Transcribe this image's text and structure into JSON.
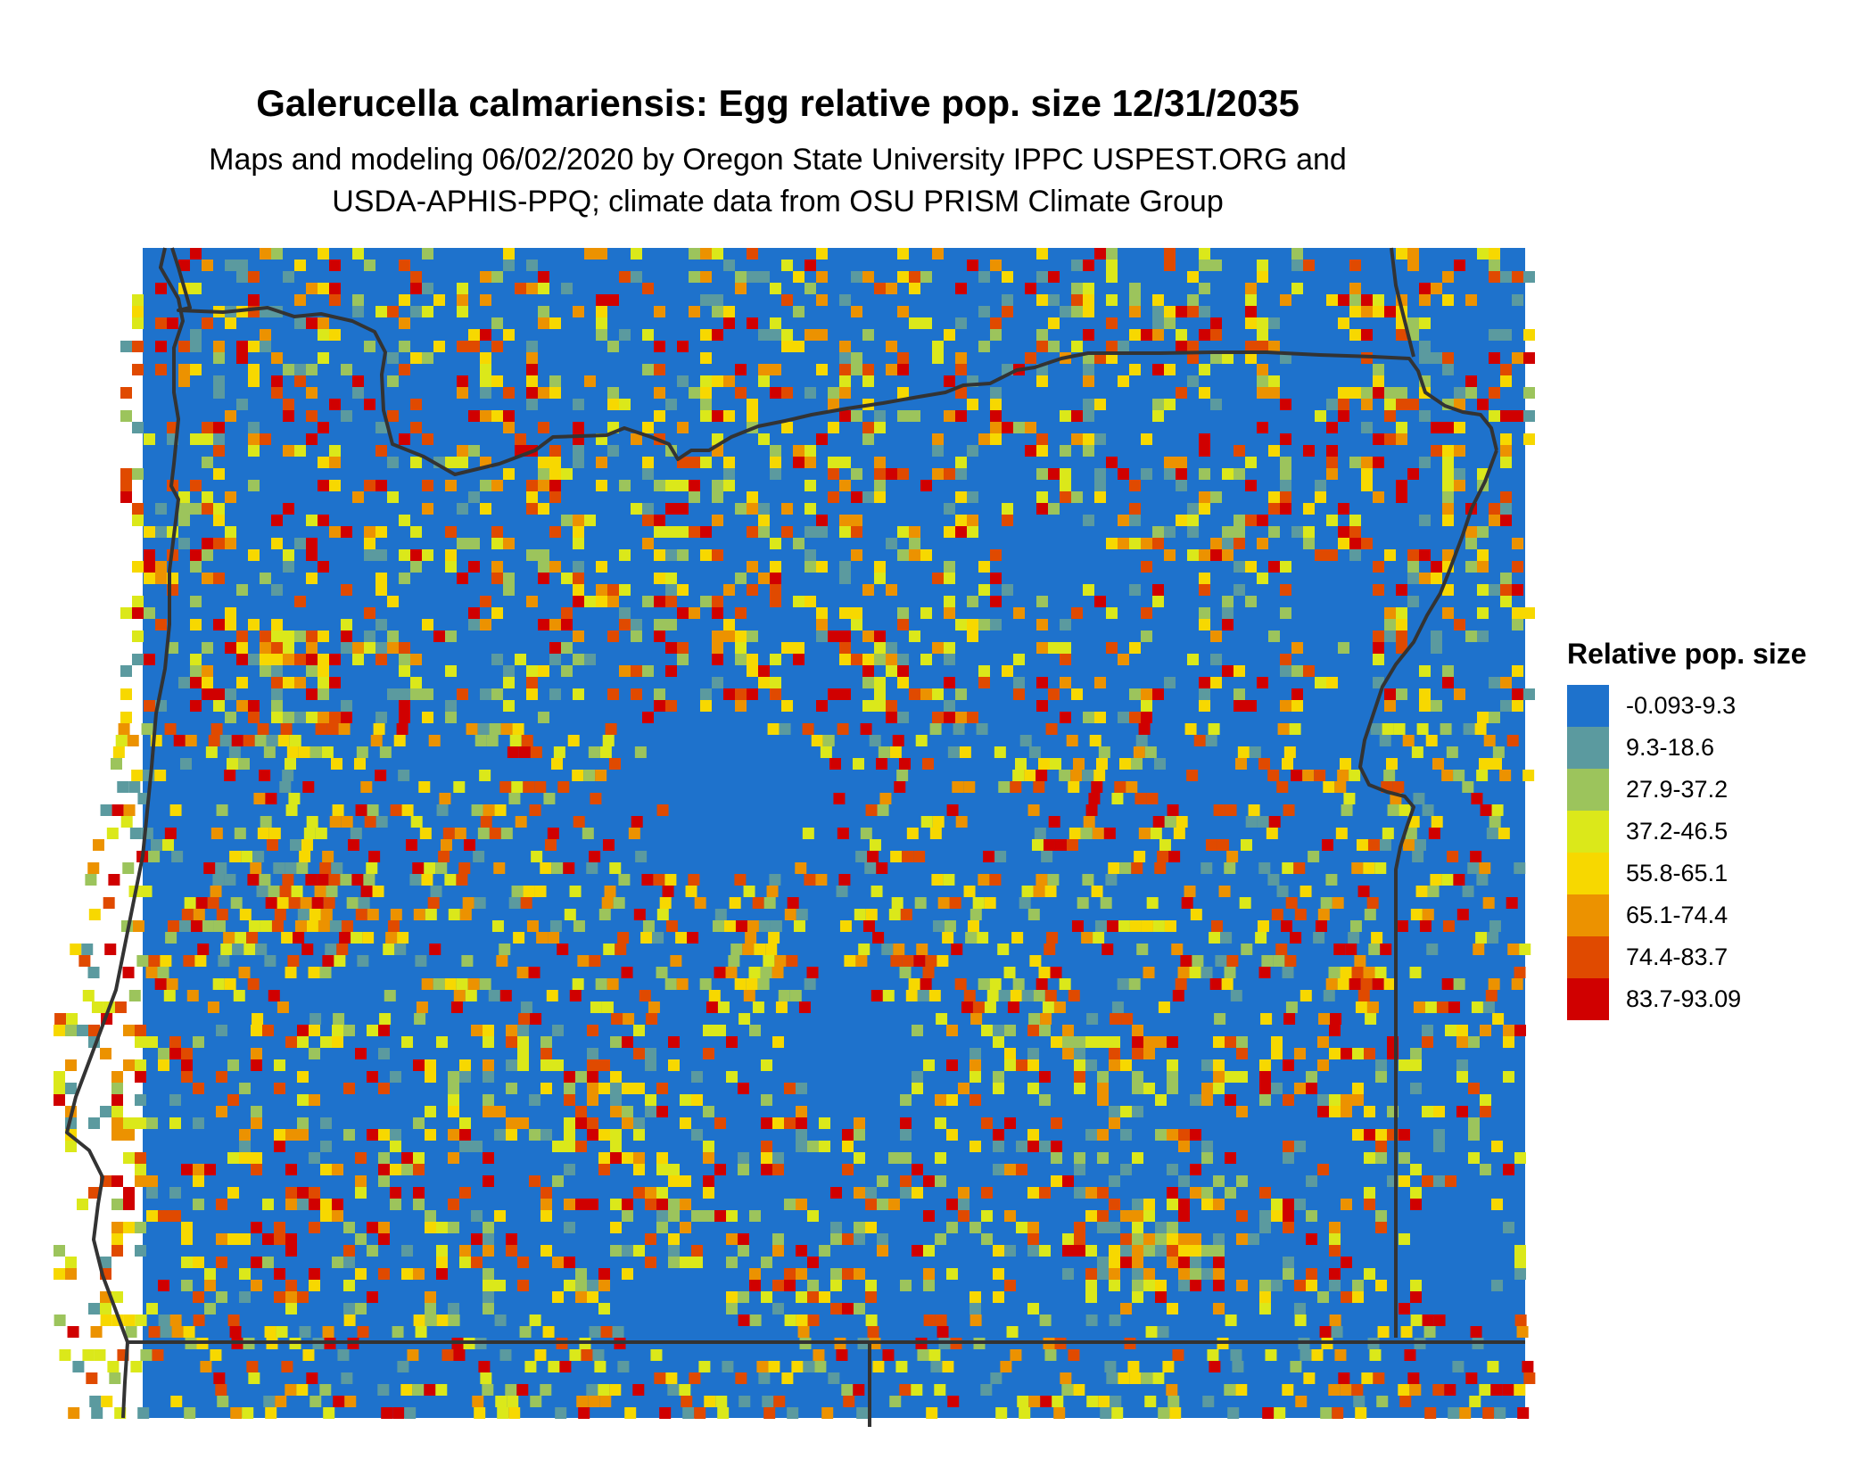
{
  "title": "Galerucella calmariensis: Egg relative pop. size 12/31/2035",
  "subtitle_line1": "Maps and modeling 06/02/2020 by Oregon State University IPPC USPEST.ORG and",
  "subtitle_line2": "USDA-APHIS-PPQ; climate data from OSU PRISM Climate Group",
  "legend": {
    "title": "Relative pop. size",
    "items": [
      {
        "label": "-0.093-9.3",
        "color": "#1e72cc"
      },
      {
        "label": "9.3-18.6",
        "color": "#5b9a9f"
      },
      {
        "label": "27.9-37.2",
        "color": "#9cc45c"
      },
      {
        "label": "37.2-46.5",
        "color": "#dbe81a"
      },
      {
        "label": "55.8-65.1",
        "color": "#f7d800"
      },
      {
        "label": "65.1-74.4",
        "color": "#ec9200"
      },
      {
        "label": "74.4-83.7",
        "color": "#e04a00"
      },
      {
        "label": "83.7-93.09",
        "color": "#d00000"
      }
    ]
  }
}
